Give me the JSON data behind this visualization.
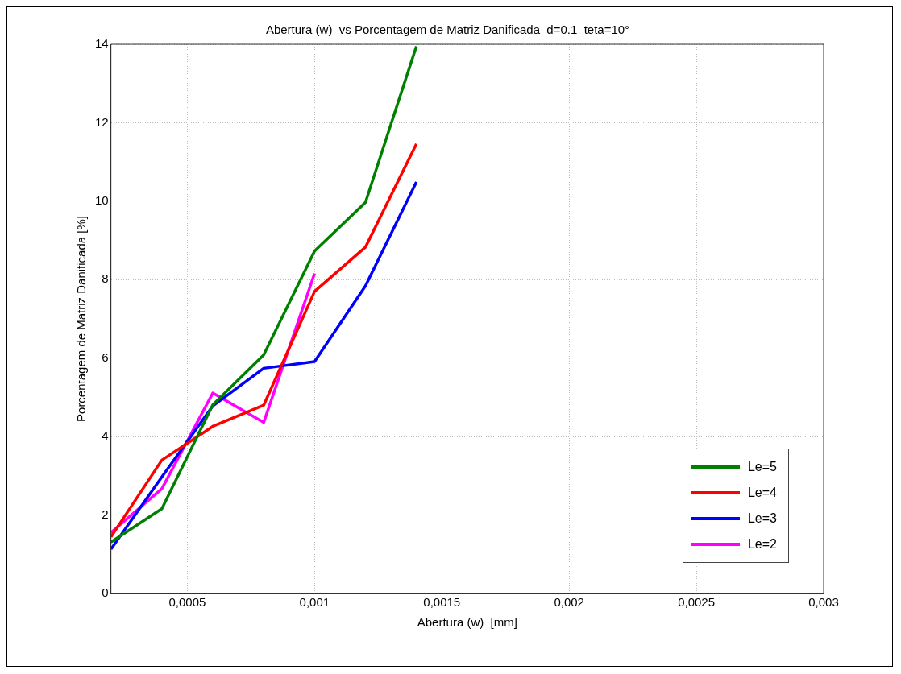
{
  "chart_data": {
    "type": "line",
    "title": "Abertura (w)  vs Porcentagem de Matriz Danificada  d=0.1  teta=10°",
    "xlabel": "Abertura (w)  [mm]",
    "ylabel": "Porcentagem de Matriz Danificada [%]",
    "x": [
      0.0002,
      0.0004,
      0.0006,
      0.0008,
      0.001,
      0.0012,
      0.0014
    ],
    "series": [
      {
        "name": "Le=5",
        "color": "#008000",
        "values": [
          1.31,
          2.16,
          4.81,
          6.08,
          8.73,
          9.97,
          13.95
        ]
      },
      {
        "name": "Le=4",
        "color": "#ff0000",
        "values": [
          1.44,
          3.4,
          4.26,
          4.8,
          7.7,
          8.83,
          11.46
        ]
      },
      {
        "name": "Le=3",
        "color": "#0000ff",
        "values": [
          1.13,
          2.97,
          4.78,
          5.74,
          5.91,
          7.84,
          10.49
        ]
      },
      {
        "name": "Le=2",
        "color": "#ff00ff",
        "values": [
          1.55,
          2.67,
          5.11,
          4.36,
          8.16,
          null,
          null
        ]
      }
    ],
    "xlim": [
      0.0002,
      0.003
    ],
    "xticks": [
      {
        "value": 0.0005,
        "label": "0,0005"
      },
      {
        "value": 0.001,
        "label": "0,001"
      },
      {
        "value": 0.0015,
        "label": "0,0015"
      },
      {
        "value": 0.002,
        "label": "0,002"
      },
      {
        "value": 0.0025,
        "label": "0,0025"
      },
      {
        "value": 0.003,
        "label": "0,003"
      }
    ],
    "ylim": [
      0,
      14
    ],
    "yticks": [
      0,
      2,
      4,
      6,
      8,
      10,
      12,
      14
    ],
    "grid": true,
    "legend": "bottom right",
    "marker": "none",
    "line_style": "solid"
  }
}
